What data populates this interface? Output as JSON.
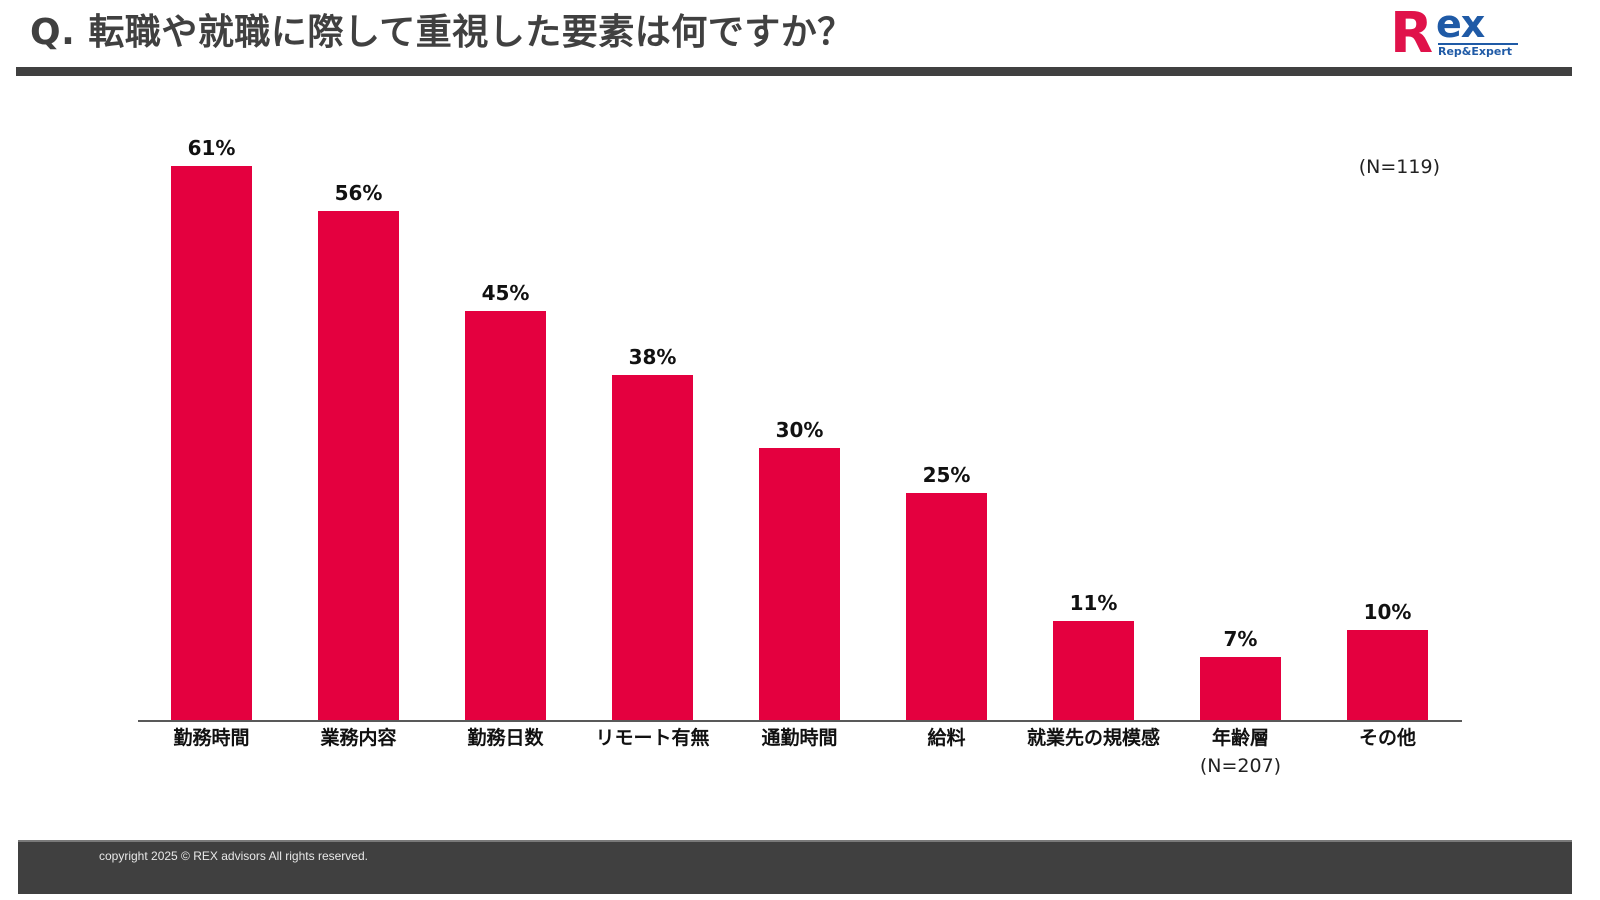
{
  "header": {
    "title": "Q. 転職や就職に際して重視した要素は何ですか？"
  },
  "logo": {
    "r": "R",
    "ex": "ex",
    "subtitle": "Rep&Expert"
  },
  "colors": {
    "bar": "#E4003F",
    "logo_red": "#E0124A",
    "logo_blue": "#1F5AA6",
    "header_bar": "#404040",
    "footer_bg": "#404040"
  },
  "footer": {
    "copyright": "copyright 2025 © REX advisors All rights reserved."
  },
  "chart_data": {
    "type": "bar",
    "title": "Q. 転職や就職に際して重視した要素は何ですか？",
    "xlabel": "",
    "ylabel": "",
    "ylim": [
      0,
      70
    ],
    "grid": false,
    "legend": null,
    "annotations": [
      "(N=119)",
      "(N=207)"
    ],
    "n_total": "(N=119)",
    "categories": [
      "勤務時間",
      "業務内容",
      "勤務日数",
      "リモート有無",
      "通勤時間",
      "給料",
      "就業先の規模感",
      "年齢層",
      "その他"
    ],
    "values": [
      61,
      56,
      45,
      38,
      30,
      25,
      11,
      7,
      10
    ],
    "value_labels": [
      "61%",
      "56%",
      "45%",
      "38%",
      "30%",
      "25%",
      "11%",
      "7%",
      "10%"
    ],
    "category_sublabels": [
      "",
      "",
      "",
      "",
      "",
      "",
      "",
      "(N=207)",
      ""
    ],
    "unit": "%"
  }
}
